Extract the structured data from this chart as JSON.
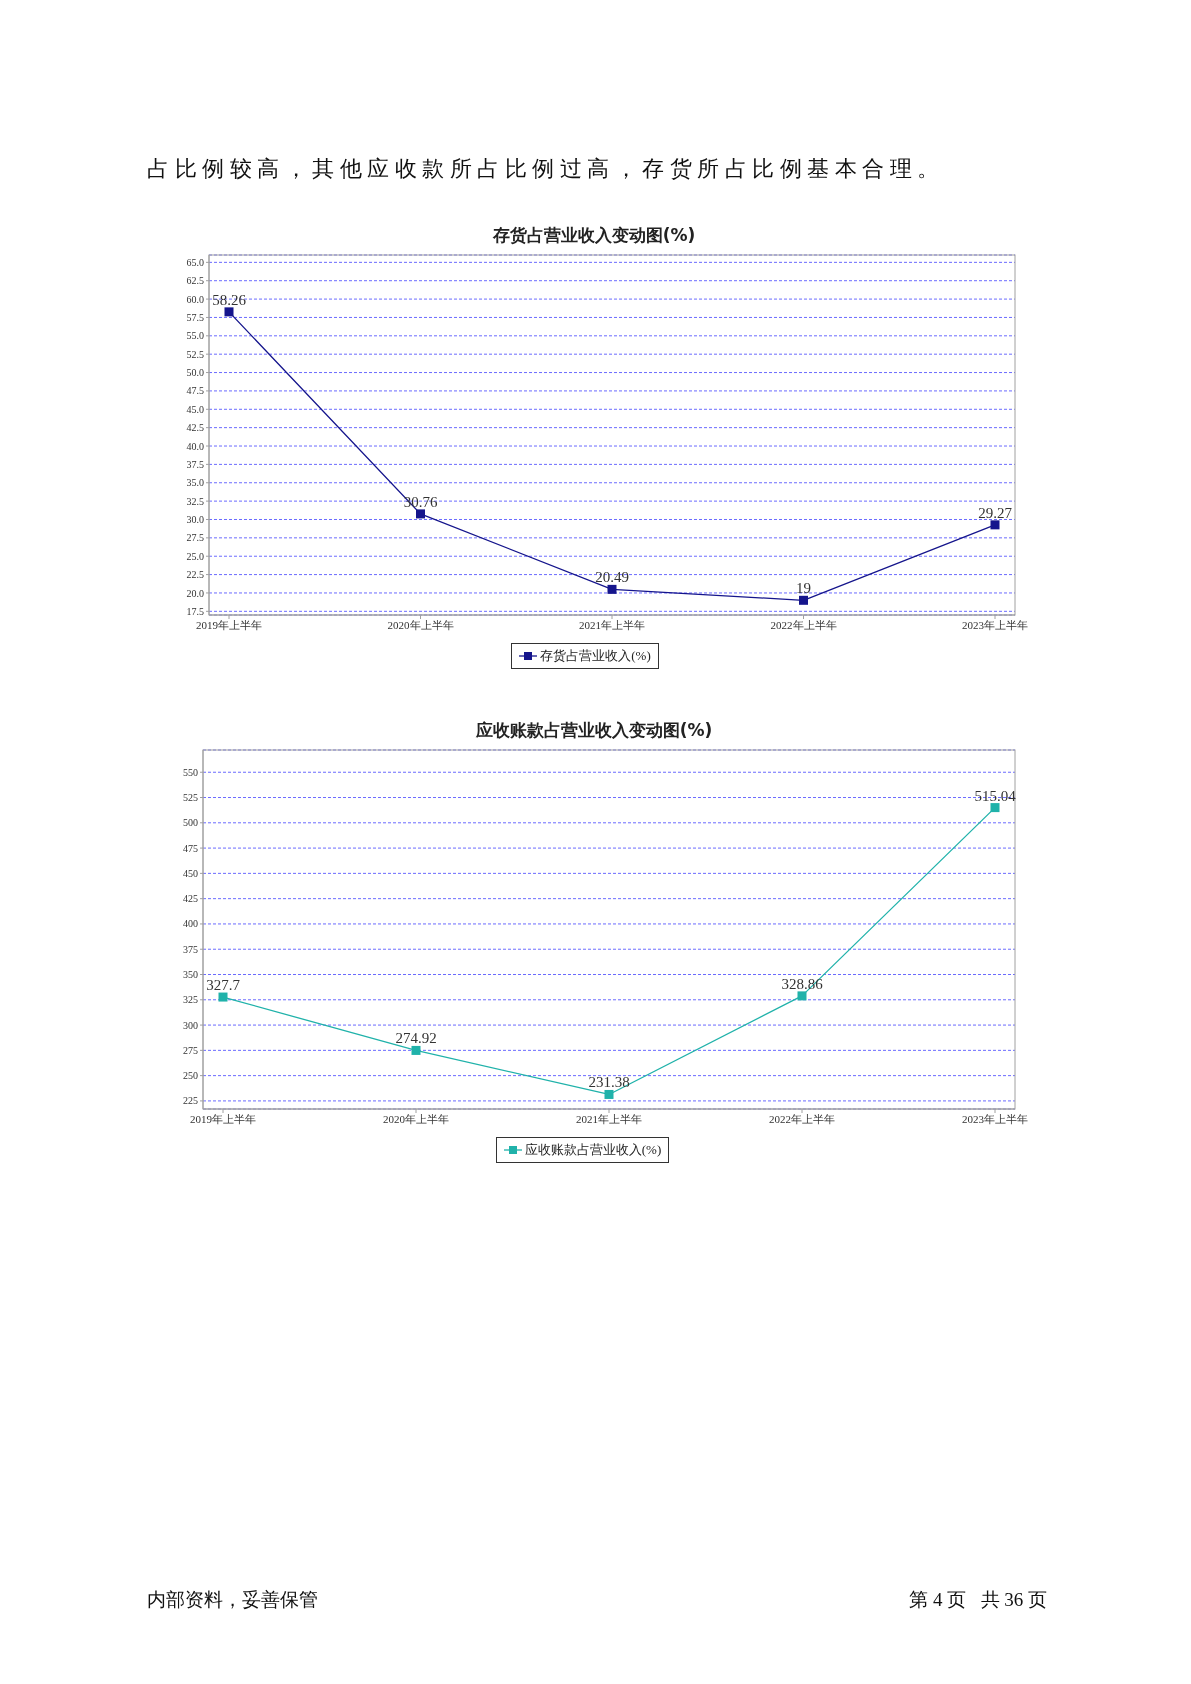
{
  "chart_data": [
    {
      "type": "line",
      "title": "存货占营业收入变动图(%)",
      "annotations": [
        "占比例较高，其他应收款所占比例过高，存货所占比例基本合理。"
      ],
      "categories": [
        "2019年上半年",
        "2020年上半年",
        "2021年上半年",
        "2022年上半年",
        "2023年上半年"
      ],
      "series": [
        {
          "name": "存货占营业收入(%)",
          "color": "#15158c",
          "values": [
            58.26,
            30.76,
            20.49,
            19,
            29.27
          ]
        }
      ],
      "ylim": [
        17,
        66
      ],
      "yticks": [
        17.5,
        {
          "value": 20,
          "label": "20.0"
        },
        22.5,
        {
          "value": 25,
          "label": "25.0"
        },
        27.5,
        {
          "value": 30,
          "label": "30.0"
        },
        32.5,
        {
          "value": 35,
          "label": "35.0"
        },
        37.5,
        {
          "value": 40,
          "label": "40.0"
        },
        42.5,
        {
          "value": 45,
          "label": "45.0"
        },
        47.5,
        {
          "value": 50,
          "label": "50.0"
        },
        52.5,
        {
          "value": 55,
          "label": "55.0"
        },
        57.5,
        {
          "value": 60,
          "label": "60.0"
        },
        62.5,
        {
          "value": 65,
          "label": "65.0"
        }
      ],
      "grid": "y",
      "legend": "bottom",
      "marker": "square",
      "data_labels": true
    },
    {
      "type": "line",
      "title": "应收账款占营业收入变动图(%)",
      "annotations": [
        "内部资料，妥善保管",
        "第 4 页   共 36 页"
      ],
      "categories": [
        "2019年上半年",
        "2020年上半年",
        "2021年上半年",
        "2022年上半年",
        "2023年上半年"
      ],
      "series": [
        {
          "name": "应收账款占营业收入(%)",
          "color": "#20b2aa",
          "values": [
            327.7,
            274.92,
            231.38,
            328.86,
            515.04
          ]
        }
      ],
      "ylim": [
        217,
        572
      ],
      "yticks": [
        225,
        250,
        275,
        300,
        325,
        350,
        375,
        400,
        425,
        450,
        475,
        500,
        525,
        550
      ],
      "grid": "y",
      "legend": "bottom",
      "marker": "square",
      "data_labels": true
    }
  ]
}
